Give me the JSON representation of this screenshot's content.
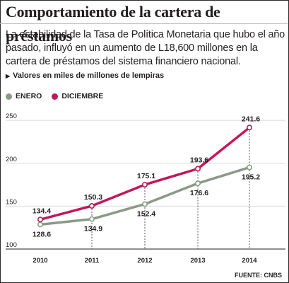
{
  "title": "Comportamiento de la cartera de préstamos",
  "intro": "La estabilidad de la Tasa de Política Monetaria que hubo el año pasado, influyó en un aumento de L18,600 millones en la cartera de préstamos del sistema financiero nacional.",
  "units_note": "Valores en miles de millones de lempiras",
  "source": "FUENTE: CNBS",
  "colors": {
    "enero": "#8a9a86",
    "diciembre": "#c2185b",
    "grid": "#d9d9d9"
  },
  "chart_data": {
    "type": "line",
    "x": [
      "2010",
      "2011",
      "2012",
      "2013",
      "2014"
    ],
    "series": [
      {
        "name": "ENERO",
        "values": [
          128.6,
          134.9,
          152.4,
          176.6,
          195.2
        ]
      },
      {
        "name": "DICIEMBRE",
        "values": [
          134.4,
          150.3,
          175.1,
          193.6,
          241.6
        ]
      }
    ],
    "y_ticks": [
      100,
      150,
      200,
      250
    ],
    "ylim": [
      100,
      260
    ],
    "grid": true,
    "legend": "top-left"
  }
}
